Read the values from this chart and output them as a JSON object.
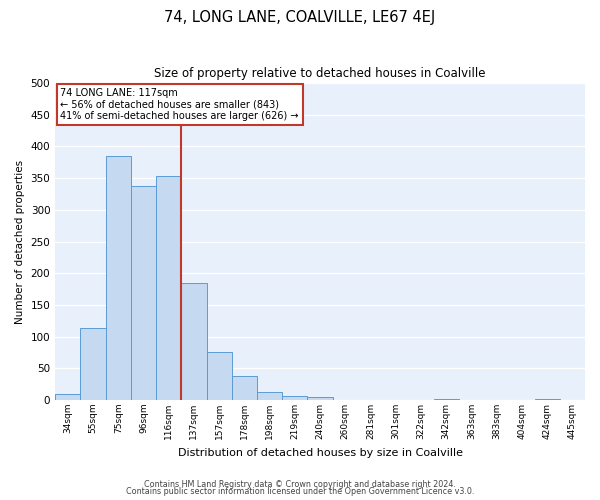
{
  "title": "74, LONG LANE, COALVILLE, LE67 4EJ",
  "subtitle": "Size of property relative to detached houses in Coalville",
  "xlabel": "Distribution of detached houses by size in Coalville",
  "ylabel": "Number of detached properties",
  "bar_labels": [
    "34sqm",
    "55sqm",
    "75sqm",
    "96sqm",
    "116sqm",
    "137sqm",
    "157sqm",
    "178sqm",
    "198sqm",
    "219sqm",
    "240sqm",
    "260sqm",
    "281sqm",
    "301sqm",
    "322sqm",
    "342sqm",
    "363sqm",
    "383sqm",
    "404sqm",
    "424sqm",
    "445sqm"
  ],
  "bar_values": [
    10,
    113,
    385,
    337,
    354,
    184,
    75,
    38,
    12,
    6,
    5,
    0,
    0,
    0,
    0,
    1,
    0,
    0,
    0,
    1,
    0
  ],
  "bar_color": "#c5d9f0",
  "bar_edge_color": "#5b9bd5",
  "property_label": "74 LONG LANE: 117sqm",
  "annotation_line1": "← 56% of detached houses are smaller (843)",
  "annotation_line2": "41% of semi-detached houses are larger (626) →",
  "vline_color": "#c0392b",
  "vline_x": 4.5,
  "box_color": "#c0392b",
  "ylim": [
    0,
    500
  ],
  "yticks": [
    0,
    50,
    100,
    150,
    200,
    250,
    300,
    350,
    400,
    450,
    500
  ],
  "footnote1": "Contains HM Land Registry data © Crown copyright and database right 2024.",
  "footnote2": "Contains public sector information licensed under the Open Government Licence v3.0.",
  "plot_bg_color": "#e8f0fb",
  "figure_bg_color": "#ffffff",
  "grid_color": "#ffffff"
}
